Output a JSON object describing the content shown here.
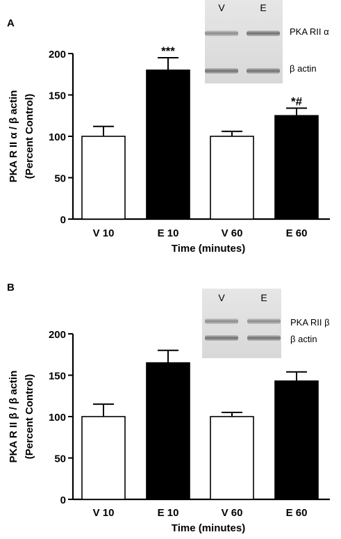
{
  "chart_data": [
    {
      "panel_label": "A",
      "type": "bar",
      "categories": [
        "V 10",
        "E 10",
        "V 60",
        "E 60"
      ],
      "values": [
        100,
        180,
        100,
        125
      ],
      "errors": [
        12,
        15,
        6,
        9
      ],
      "bar_colors": [
        "#ffffff",
        "#000000",
        "#ffffff",
        "#000000"
      ],
      "annotations": [
        "",
        "***",
        "",
        "*#"
      ],
      "ylabel_line1": "PKA R II α / β actin",
      "ylabel_line2": "(Percent  Control)",
      "xlabel": "Time (minutes)",
      "ylim": [
        0,
        200
      ],
      "yticks": [
        0,
        50,
        100,
        150,
        200
      ],
      "blot": {
        "lanes": [
          "V",
          "E"
        ],
        "bands": [
          "PKA RII α",
          "β actin"
        ]
      }
    },
    {
      "panel_label": "B",
      "type": "bar",
      "categories": [
        "V 10",
        "E 10",
        "V 60",
        "E 60"
      ],
      "values": [
        100,
        165,
        100,
        143
      ],
      "errors": [
        15,
        15,
        5,
        11
      ],
      "bar_colors": [
        "#ffffff",
        "#000000",
        "#ffffff",
        "#000000"
      ],
      "annotations": [
        "",
        "",
        "",
        ""
      ],
      "ylabel_line1": "PKA R II β / β actin",
      "ylabel_line2": "(Percent  Control)",
      "xlabel": "Time (minutes)",
      "ylim": [
        0,
        200
      ],
      "yticks": [
        0,
        50,
        100,
        150,
        200
      ],
      "blot": {
        "lanes": [
          "V",
          "E"
        ],
        "bands": [
          "PKA RII β",
          "β actin"
        ]
      }
    }
  ]
}
